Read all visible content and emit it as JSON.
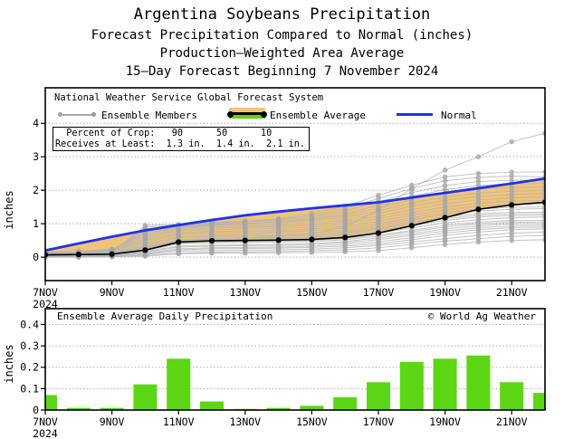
{
  "title": {
    "line1": "Argentina Soybeans Precipitation",
    "line2": "Forecast Precipitation Compared to Normal (inches)",
    "line3": "Production–Weighted Area Average",
    "line4": "15–Day Forecast Beginning 7 November 2024"
  },
  "legend": {
    "line1": "National Weather Service Global Forecast System",
    "members_label": "Ensemble Members",
    "average_label": "Ensemble Average",
    "normal_label": "Normal"
  },
  "crop_box": {
    "row1": "  Percent of Crop:   90      50      10",
    "row2": "Receives at Least:  1.3 in.  1.4 in.  2.1 in.",
    "percents": [
      "90",
      "50",
      "10"
    ],
    "receives_at_least": [
      "1.3 in.",
      "1.4 in.",
      "2.1 in."
    ]
  },
  "colors": {
    "bar_green": "#5cd615",
    "band_orange": "#f2c377",
    "normal_blue": "#2033e6",
    "member_gray": "#b4b4b4",
    "member_dot": "#a6a6a6",
    "average_black": "#000000",
    "grid_gray": "#9a9a9a"
  },
  "chart_data": [
    {
      "type": "line",
      "ylabel": "inches",
      "ylim": [
        -0.7,
        5.06
      ],
      "yticks": [
        0,
        1,
        2,
        3,
        4
      ],
      "x_days": [
        "7NOV",
        "8NOV",
        "9NOV",
        "10NOV",
        "11NOV",
        "12NOV",
        "13NOV",
        "14NOV",
        "15NOV",
        "16NOV",
        "17NOV",
        "18NOV",
        "19NOV",
        "20NOV",
        "21NOV",
        "22NOV"
      ],
      "x_tick_labels": [
        "7NOV",
        "9NOV",
        "11NOV",
        "13NOV",
        "15NOV",
        "17NOV",
        "19NOV",
        "21NOV"
      ],
      "x_year_sublabel": "2024",
      "grid": true,
      "series": [
        {
          "name": "Ensemble Average",
          "values": [
            0.07,
            0.08,
            0.09,
            0.21,
            0.45,
            0.49,
            0.5,
            0.51,
            0.53,
            0.59,
            0.72,
            0.94,
            1.18,
            1.43,
            1.56,
            1.64
          ]
        },
        {
          "name": "Normal",
          "values": [
            0.2,
            0.41,
            0.61,
            0.8,
            0.96,
            1.11,
            1.25,
            1.36,
            1.46,
            1.55,
            1.64,
            1.78,
            1.92,
            2.06,
            2.2,
            2.35
          ]
        }
      ],
      "members": [
        [
          0.0,
          0.0,
          0.01,
          0.03,
          0.1,
          0.12,
          0.12,
          0.13,
          0.14,
          0.16,
          0.2,
          0.28,
          0.38,
          0.45,
          0.5,
          0.52
        ],
        [
          0.01,
          0.01,
          0.02,
          0.05,
          0.12,
          0.15,
          0.16,
          0.17,
          0.19,
          0.22,
          0.28,
          0.38,
          0.48,
          0.55,
          0.62,
          0.65
        ],
        [
          0.02,
          0.02,
          0.03,
          0.08,
          0.18,
          0.2,
          0.21,
          0.22,
          0.24,
          0.28,
          0.35,
          0.45,
          0.55,
          0.65,
          0.72,
          0.75
        ],
        [
          0.03,
          0.04,
          0.05,
          0.1,
          0.22,
          0.25,
          0.26,
          0.27,
          0.29,
          0.33,
          0.4,
          0.52,
          0.65,
          0.75,
          0.82,
          0.85
        ],
        [
          0.05,
          0.06,
          0.07,
          0.12,
          0.25,
          0.28,
          0.29,
          0.3,
          0.33,
          0.38,
          0.46,
          0.58,
          0.72,
          0.82,
          0.88,
          0.9
        ],
        [
          0.06,
          0.07,
          0.08,
          0.15,
          0.3,
          0.33,
          0.34,
          0.35,
          0.38,
          0.43,
          0.52,
          0.65,
          0.78,
          0.88,
          0.93,
          0.95
        ],
        [
          0.08,
          0.09,
          0.1,
          0.18,
          0.33,
          0.36,
          0.37,
          0.38,
          0.41,
          0.47,
          0.57,
          0.7,
          0.84,
          0.94,
          0.99,
          1.0
        ],
        [
          0.02,
          0.03,
          0.04,
          0.2,
          0.4,
          0.43,
          0.44,
          0.45,
          0.47,
          0.52,
          0.62,
          0.76,
          0.9,
          1.0,
          1.04,
          1.05
        ],
        [
          0.04,
          0.05,
          0.06,
          0.22,
          0.42,
          0.46,
          0.47,
          0.48,
          0.5,
          0.56,
          0.66,
          0.8,
          0.95,
          1.05,
          1.09,
          1.1
        ],
        [
          0.07,
          0.08,
          0.09,
          0.25,
          0.45,
          0.49,
          0.5,
          0.51,
          0.54,
          0.6,
          0.72,
          0.88,
          1.02,
          1.12,
          1.18,
          1.2
        ],
        [
          0.09,
          0.1,
          0.12,
          0.28,
          0.48,
          0.52,
          0.53,
          0.55,
          0.58,
          0.65,
          0.78,
          0.95,
          1.1,
          1.2,
          1.24,
          1.25
        ],
        [
          0.1,
          0.12,
          0.14,
          0.3,
          0.52,
          0.56,
          0.57,
          0.59,
          0.62,
          0.7,
          0.84,
          1.0,
          1.15,
          1.25,
          1.29,
          1.3
        ],
        [
          0.05,
          0.06,
          0.08,
          0.35,
          0.58,
          0.62,
          0.63,
          0.64,
          0.67,
          0.75,
          0.88,
          1.05,
          1.2,
          1.3,
          1.34,
          1.35
        ],
        [
          0.06,
          0.08,
          0.1,
          0.4,
          0.62,
          0.66,
          0.67,
          0.69,
          0.72,
          0.8,
          0.94,
          1.12,
          1.28,
          1.38,
          1.43,
          1.45
        ],
        [
          0.08,
          0.1,
          0.13,
          0.45,
          0.68,
          0.72,
          0.73,
          0.75,
          0.79,
          0.87,
          1.0,
          1.18,
          1.34,
          1.44,
          1.49,
          1.5
        ],
        [
          0.1,
          0.13,
          0.16,
          0.5,
          0.72,
          0.77,
          0.78,
          0.8,
          0.84,
          0.93,
          1.07,
          1.25,
          1.42,
          1.52,
          1.58,
          1.6
        ],
        [
          0.12,
          0.15,
          0.18,
          0.55,
          0.78,
          0.82,
          0.84,
          0.86,
          0.9,
          1.0,
          1.15,
          1.33,
          1.5,
          1.61,
          1.67,
          1.7
        ],
        [
          0.13,
          0.16,
          0.2,
          0.6,
          0.82,
          0.87,
          0.89,
          0.91,
          0.96,
          1.06,
          1.22,
          1.42,
          1.6,
          1.71,
          1.77,
          1.8
        ],
        [
          0.14,
          0.17,
          0.22,
          0.65,
          0.86,
          0.91,
          0.93,
          0.96,
          1.01,
          1.12,
          1.3,
          1.52,
          1.7,
          1.81,
          1.87,
          1.9
        ],
        [
          0.15,
          0.18,
          0.24,
          0.7,
          0.9,
          0.95,
          0.98,
          1.01,
          1.07,
          1.19,
          1.38,
          1.62,
          1.8,
          1.91,
          1.97,
          2.0
        ],
        [
          0.12,
          0.16,
          0.22,
          0.75,
          0.92,
          0.98,
          1.01,
          1.05,
          1.12,
          1.25,
          1.46,
          1.72,
          1.92,
          2.03,
          2.08,
          2.1
        ],
        [
          0.1,
          0.14,
          0.2,
          0.8,
          0.88,
          0.95,
          1.0,
          1.06,
          1.15,
          1.3,
          1.55,
          1.82,
          2.02,
          2.14,
          2.19,
          2.2
        ],
        [
          0.08,
          0.12,
          0.18,
          0.85,
          0.92,
          1.0,
          1.05,
          1.1,
          1.2,
          1.38,
          1.65,
          1.93,
          2.14,
          2.26,
          2.3,
          2.3
        ],
        [
          0.06,
          0.1,
          0.16,
          0.9,
          0.95,
          1.02,
          1.06,
          1.12,
          1.25,
          1.45,
          1.75,
          2.05,
          2.28,
          2.38,
          2.42,
          2.4
        ],
        [
          0.05,
          0.08,
          0.14,
          0.95,
          0.98,
          1.04,
          1.08,
          1.15,
          1.3,
          1.52,
          1.85,
          2.15,
          2.4,
          2.5,
          2.54,
          2.55
        ],
        [
          0.04,
          0.05,
          0.07,
          0.3,
          0.5,
          0.55,
          0.58,
          0.62,
          0.7,
          0.9,
          1.4,
          2.05,
          2.6,
          3.0,
          3.45,
          3.7
        ]
      ]
    },
    {
      "type": "bar",
      "title": "Ensemble Average Daily Precipitation",
      "watermark": "© World Ag Weather",
      "ylabel": "inches",
      "ylim": [
        0,
        0.474
      ],
      "yticks": [
        0,
        0.1,
        0.2,
        0.3,
        0.4
      ],
      "x_tick_labels": [
        "7NOV",
        "9NOV",
        "11NOV",
        "13NOV",
        "15NOV",
        "17NOV",
        "19NOV",
        "21NOV"
      ],
      "x_year_sublabel": "2024",
      "grid": true,
      "values": [
        0.07,
        0.01,
        0.01,
        0.12,
        0.24,
        0.04,
        0.005,
        0.01,
        0.02,
        0.06,
        0.13,
        0.225,
        0.24,
        0.255,
        0.13,
        0.08
      ]
    }
  ]
}
